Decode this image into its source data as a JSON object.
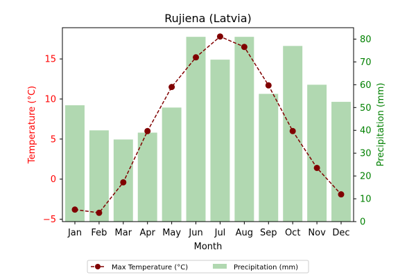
{
  "chart_data": {
    "type": "bar+line",
    "title": "Rujiena (Latvia)",
    "xlabel": "Month",
    "ylabel_left": "Temperature (°C)",
    "ylabel_right": "Precipitation (mm)",
    "categories": [
      "Jan",
      "Feb",
      "Mar",
      "Apr",
      "May",
      "Jun",
      "Jul",
      "Aug",
      "Sep",
      "Oct",
      "Nov",
      "Dec"
    ],
    "series": [
      {
        "name": "Max Temperature (°C)",
        "type": "line",
        "axis": "left",
        "color": "#800000",
        "style": "dashed with circle markers",
        "values": [
          -3.8,
          -4.2,
          -0.4,
          6.0,
          11.5,
          15.2,
          17.8,
          16.5,
          11.7,
          6.0,
          1.4,
          -1.9
        ]
      },
      {
        "name": "Precipitation (mm)",
        "type": "bar",
        "axis": "right",
        "color": "#b1d8b1",
        "values": [
          51,
          40,
          36,
          39,
          50,
          81,
          71,
          81,
          56,
          77,
          60,
          52.5
        ]
      }
    ],
    "ylim_left": [
      -5.3,
      18.9
    ],
    "yticks_left": [
      "−5",
      "0",
      "5",
      "10",
      "15"
    ],
    "yticks_left_values": [
      -5,
      0,
      5,
      10,
      15
    ],
    "ylim_right": [
      0,
      85
    ],
    "yticks_right": [
      "0",
      "10",
      "20",
      "30",
      "40",
      "50",
      "60",
      "70",
      "80"
    ],
    "yticks_right_values": [
      0,
      10,
      20,
      30,
      40,
      50,
      60,
      70,
      80
    ],
    "left_axis_color": "#ff0000",
    "right_axis_color": "#008000",
    "grid": false,
    "legend_position": "bottom-center"
  }
}
